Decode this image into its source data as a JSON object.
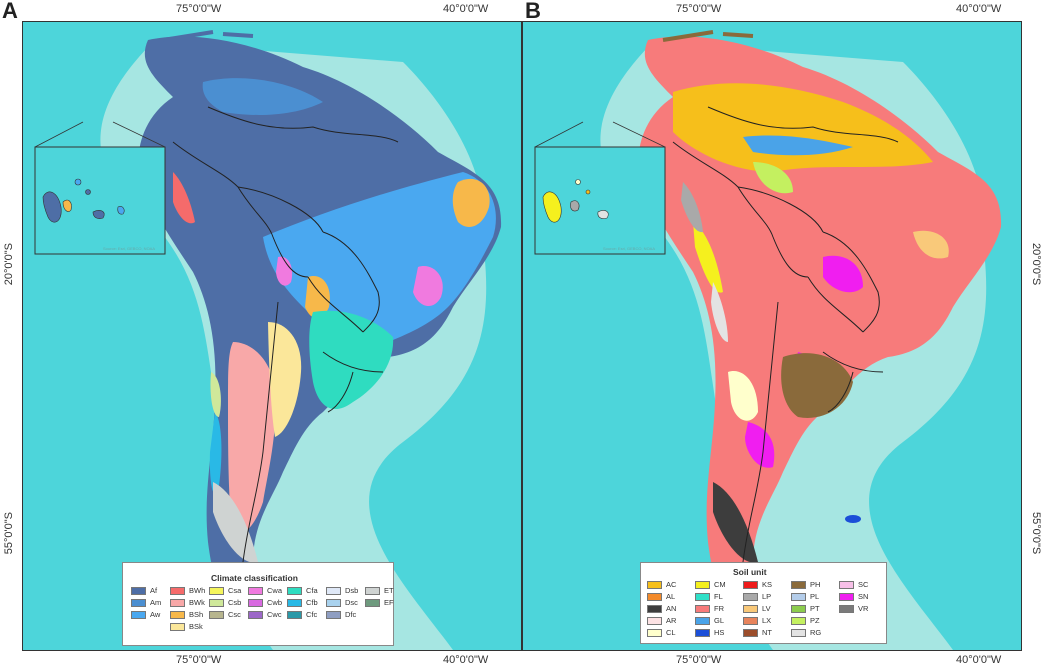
{
  "panels": {
    "a": {
      "letter": "A"
    },
    "b": {
      "letter": "B"
    }
  },
  "coords": {
    "lon_west": "75°0'0\"W",
    "lon_east": "40°0'0\"W",
    "lat_north": "20°0'0\"S",
    "lat_south": "55°0'0\"S"
  },
  "colors": {
    "ocean_deep": "#4dd5da",
    "ocean_shelf": "#a6e6e2",
    "ocean_coast": "#c9eeea",
    "country_border": "#222222"
  },
  "climate_legend": {
    "title": "Climate classification",
    "classes": [
      {
        "code": "Af",
        "color": "#4e6ea6"
      },
      {
        "code": "Am",
        "color": "#4b8fd1"
      },
      {
        "code": "Aw",
        "color": "#4aa8f0"
      },
      {
        "code": "BWh",
        "color": "#f56b6b"
      },
      {
        "code": "BWk",
        "color": "#f8a8a8"
      },
      {
        "code": "BSh",
        "color": "#f7b84a"
      },
      {
        "code": "BSk",
        "color": "#fbe79a"
      },
      {
        "code": "Csa",
        "color": "#f5f55c"
      },
      {
        "code": "Csb",
        "color": "#cfe89a"
      },
      {
        "code": "Csc",
        "color": "#b7b58e"
      },
      {
        "code": "Cwa",
        "color": "#f07adf"
      },
      {
        "code": "Cwb",
        "color": "#d86ae0"
      },
      {
        "code": "Cwc",
        "color": "#9c68c8"
      },
      {
        "code": "Cfa",
        "color": "#2fdcc0"
      },
      {
        "code": "Cfb",
        "color": "#29b9e6"
      },
      {
        "code": "Cfc",
        "color": "#2b99a8"
      },
      {
        "code": "Dsb",
        "color": "#dfe8f7"
      },
      {
        "code": "Dsc",
        "color": "#a9d2ee"
      },
      {
        "code": "Dfc",
        "color": "#8f9ec2"
      },
      {
        "code": "ET",
        "color": "#cfd3d2"
      },
      {
        "code": "EF",
        "color": "#6e9a7e"
      }
    ]
  },
  "soil_legend": {
    "title": "Soil unit",
    "classes": [
      {
        "code": "AC",
        "color": "#f6bf1b"
      },
      {
        "code": "AL",
        "color": "#f38a2a"
      },
      {
        "code": "AN",
        "color": "#3d3d3d"
      },
      {
        "code": "AR",
        "color": "#fde2e4"
      },
      {
        "code": "CL",
        "color": "#ffffcc"
      },
      {
        "code": "CM",
        "color": "#f5f01e"
      },
      {
        "code": "FL",
        "color": "#2fe0c8"
      },
      {
        "code": "FR",
        "color": "#f77b7b"
      },
      {
        "code": "GL",
        "color": "#4aa3e8"
      },
      {
        "code": "HS",
        "color": "#1b4fd8"
      },
      {
        "code": "KS",
        "color": "#ee1b1b"
      },
      {
        "code": "LP",
        "color": "#a9a9a9"
      },
      {
        "code": "LV",
        "color": "#f9c97a"
      },
      {
        "code": "LX",
        "color": "#e8845c"
      },
      {
        "code": "NT",
        "color": "#9b4d2b"
      },
      {
        "code": "PH",
        "color": "#8a6a3b"
      },
      {
        "code": "PL",
        "color": "#b4cdea"
      },
      {
        "code": "PT",
        "color": "#8ccc4e"
      },
      {
        "code": "PZ",
        "color": "#c4f060"
      },
      {
        "code": "RG",
        "color": "#e3e3e3"
      },
      {
        "code": "SC",
        "color": "#f7c0e8"
      },
      {
        "code": "SN",
        "color": "#f01ef0"
      },
      {
        "code": "VR",
        "color": "#7a7a7a"
      }
    ]
  },
  "inset": {
    "credit": "Source: Esri, GEBCO, NOAA"
  }
}
